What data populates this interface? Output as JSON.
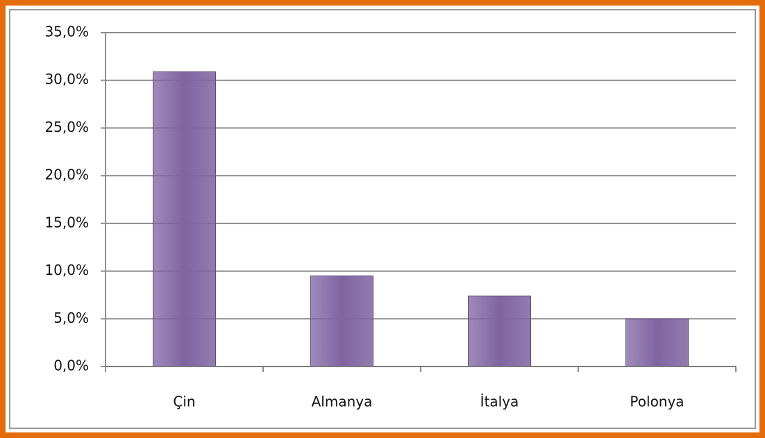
{
  "chart_data": {
    "type": "bar",
    "categories": [
      "Çin",
      "Almanya",
      "İtalya",
      "Polonya"
    ],
    "values": [
      30.9,
      9.5,
      7.4,
      5.0
    ],
    "color": "#8064a2",
    "ylim": [
      0,
      35
    ],
    "yticks": [
      {
        "value": 0,
        "label": "0,0%"
      },
      {
        "value": 5,
        "label": "5,0%"
      },
      {
        "value": 10,
        "label": "10,0%"
      },
      {
        "value": 15,
        "label": "15,0%"
      },
      {
        "value": 20,
        "label": "20,0%"
      },
      {
        "value": 25,
        "label": "25,0%"
      },
      {
        "value": 30,
        "label": "30,0%"
      },
      {
        "value": 35,
        "label": "35,0%"
      }
    ],
    "grid": true
  }
}
